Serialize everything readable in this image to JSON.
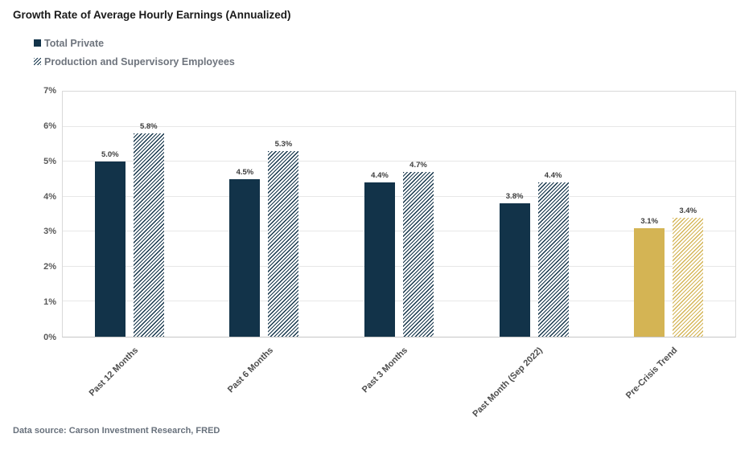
{
  "title": "Growth Rate of Average Hourly Earnings (Annualized)",
  "legend": [
    {
      "label": "Total Private",
      "swatch": "solid-navy-square"
    },
    {
      "label": "Production and Supervisory Employees",
      "swatch": "hatched-navy-square"
    }
  ],
  "footer": "Data source: Carson Investment Research, FRED",
  "chart_data": {
    "type": "bar",
    "title": "Growth Rate of Average Hourly Earnings (Annualized)",
    "categories": [
      "Past 12 Months",
      "Past 6 Months",
      "Past 3 Months",
      "Past Month (Sep 2022)",
      "Pre-Crisis Trend"
    ],
    "series": [
      {
        "name": "Total Private",
        "style": "solid",
        "values": [
          5.0,
          4.5,
          4.4,
          3.8,
          3.1
        ],
        "labels": [
          "5.0%",
          "4.5%",
          "4.4%",
          "3.8%",
          "3.1%"
        ]
      },
      {
        "name": "Production and Supervisory Employees",
        "style": "hatched",
        "values": [
          5.8,
          5.3,
          4.7,
          4.4,
          3.4
        ],
        "labels": [
          "5.8%",
          "5.3%",
          "4.7%",
          "4.4%",
          "3.4%"
        ]
      }
    ],
    "highlight_category": "Pre-Crisis Trend",
    "y_ticks": [
      "0%",
      "1%",
      "2%",
      "3%",
      "4%",
      "5%",
      "6%",
      "7%"
    ],
    "ylim": [
      0,
      7
    ],
    "xlabel": "",
    "ylabel": "",
    "grid": true,
    "legend_position": "top-left",
    "colors": {
      "navy": "#123349",
      "gold": "#d4b454"
    }
  }
}
